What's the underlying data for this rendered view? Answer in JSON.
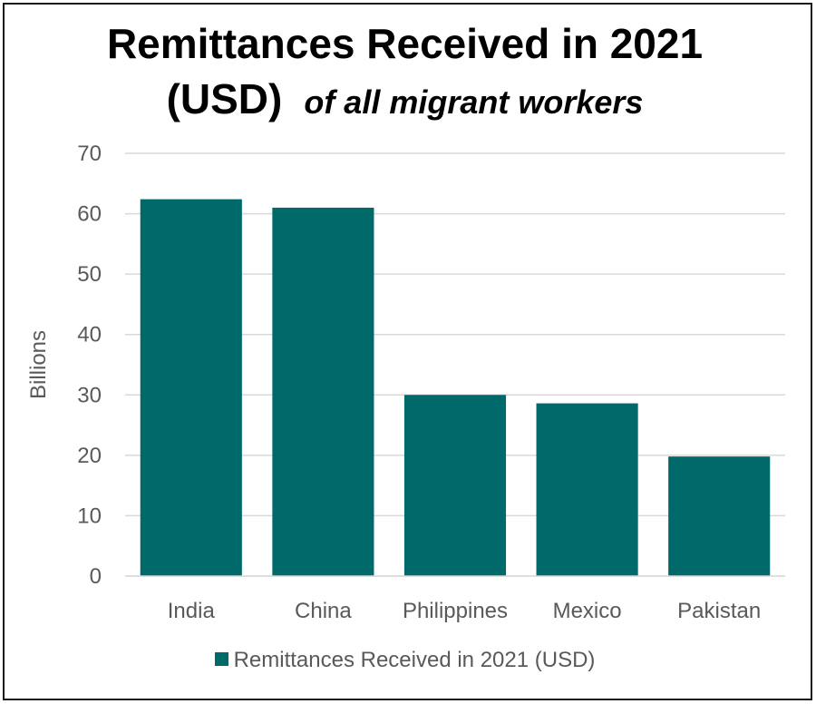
{
  "title": {
    "line1": "Remittances Received in 2021",
    "line2_main": "(USD)",
    "line2_sub": "of all migrant workers"
  },
  "colors": {
    "bar": "#006a6a",
    "grid": "#d9d9d9",
    "axis_text": "#595959"
  },
  "chart_data": {
    "type": "bar",
    "categories": [
      "India",
      "China",
      "Philippines",
      "Mexico",
      "Pakistan"
    ],
    "series": [
      {
        "name": "Remittances Received in 2021 (USD)",
        "values": [
          62.4,
          61.0,
          30.0,
          28.6,
          19.8
        ]
      }
    ],
    "ylabel": "Billions",
    "xlabel": "",
    "ylim": [
      0,
      70
    ],
    "yticks": [
      0,
      10,
      20,
      30,
      40,
      50,
      60,
      70
    ],
    "grid": true,
    "legend_position": "bottom"
  },
  "legend": {
    "label": "Remittances Received in 2021 (USD)"
  }
}
